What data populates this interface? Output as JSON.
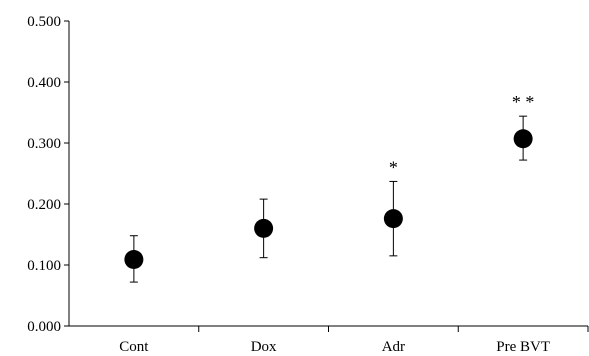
{
  "chart_data": {
    "type": "scatter",
    "title": "",
    "xlabel": "",
    "ylabel": "",
    "ylim": [
      0,
      0.5
    ],
    "yticks": [
      "0.000",
      "0.100",
      "0.200",
      "0.300",
      "0.400",
      "0.500"
    ],
    "grid": false,
    "categories": [
      "Cont",
      "Dox",
      "Adr",
      "Pre BVT"
    ],
    "series": [
      {
        "values": [
          0.109,
          0.16,
          0.176,
          0.307
        ],
        "error_upper": [
          0.148,
          0.208,
          0.237,
          0.344
        ],
        "error_lower": [
          0.072,
          0.112,
          0.115,
          0.272
        ]
      }
    ],
    "annotations": [
      "",
      "",
      "*",
      "**"
    ],
    "colors": {
      "marker": "#000000",
      "axis": "#000000"
    }
  }
}
